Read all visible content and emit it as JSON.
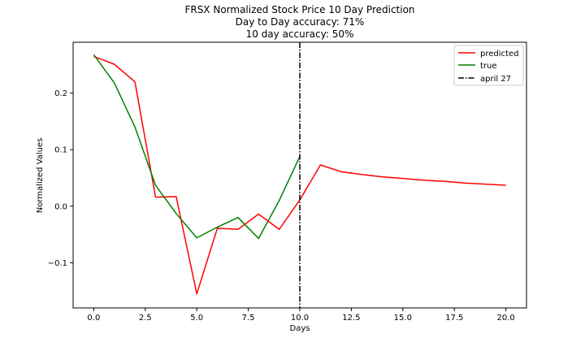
{
  "chart_data": {
    "type": "line",
    "title_lines": [
      "FRSX Normalized Stock Price 10 Day Prediction",
      "Day to Day accuracy: 71%",
      "10 day accuracy: 50%"
    ],
    "xlabel": "Days",
    "ylabel": "Normalized Values",
    "xlim": [
      -1.0,
      21.0
    ],
    "ylim": [
      -0.18,
      0.29
    ],
    "x_ticks": [
      0.0,
      2.5,
      5.0,
      7.5,
      10.0,
      12.5,
      15.0,
      17.5,
      20.0
    ],
    "x_tick_labels": [
      "0.0",
      "2.5",
      "5.0",
      "7.5",
      "10.0",
      "12.5",
      "15.0",
      "17.5",
      "20.0"
    ],
    "y_ticks": [
      -0.1,
      0.0,
      0.1,
      0.2
    ],
    "y_tick_labels": [
      "−0.1",
      "0.0",
      "0.1",
      "0.2"
    ],
    "grid": false,
    "legend_position": "top-right",
    "series": [
      {
        "name": "predicted",
        "color": "#ff0000",
        "x": [
          0,
          1,
          2,
          3,
          4,
          5,
          6,
          7,
          8,
          9,
          10,
          11,
          12,
          13,
          14,
          15,
          16,
          17,
          18,
          19,
          20
        ],
        "values": [
          0.265,
          0.251,
          0.22,
          0.016,
          0.017,
          -0.155,
          -0.039,
          -0.041,
          -0.014,
          -0.041,
          0.011,
          0.073,
          0.061,
          0.056,
          0.052,
          0.049,
          0.046,
          0.044,
          0.041,
          0.039,
          0.037
        ]
      },
      {
        "name": "true",
        "color": "#008000",
        "x": [
          0,
          1,
          2,
          3,
          4,
          5,
          6,
          7,
          8,
          9,
          10
        ],
        "values": [
          0.268,
          0.218,
          0.14,
          0.037,
          -0.013,
          -0.056,
          -0.037,
          -0.02,
          -0.057,
          0.01,
          0.088
        ]
      }
    ],
    "vline": {
      "name": "april 27",
      "x": 10.0,
      "color": "#000000"
    }
  }
}
